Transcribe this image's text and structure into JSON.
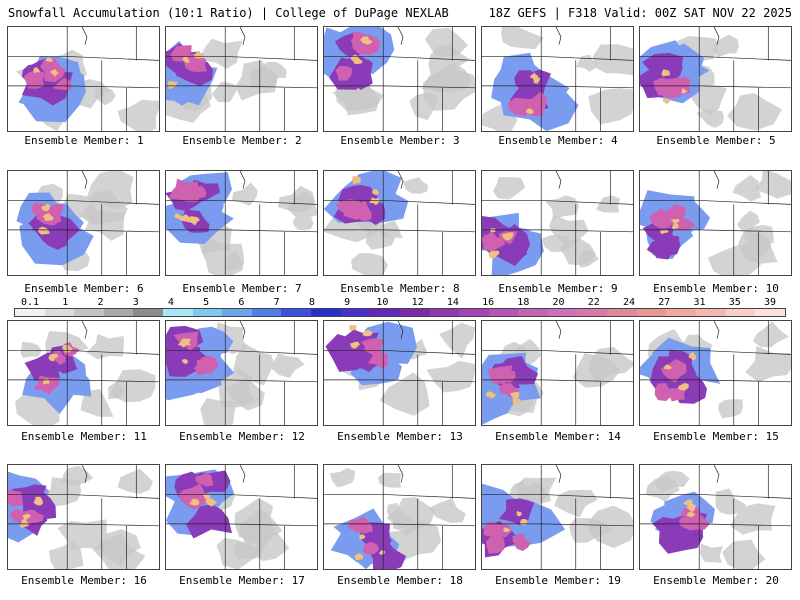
{
  "header": {
    "left": "Snowfall Accumulation (10:1 Ratio) | College of DuPage NEXLAB",
    "right": "18Z GEFS | F318 Valid: 00Z SAT NOV 22 2025"
  },
  "members": [
    {
      "label": "Ensemble Member: 1"
    },
    {
      "label": "Ensemble Member: 2"
    },
    {
      "label": "Ensemble Member: 3"
    },
    {
      "label": "Ensemble Member: 4"
    },
    {
      "label": "Ensemble Member: 5"
    },
    {
      "label": "Ensemble Member: 6"
    },
    {
      "label": "Ensemble Member: 7"
    },
    {
      "label": "Ensemble Member: 8"
    },
    {
      "label": "Ensemble Member: 9"
    },
    {
      "label": "Ensemble Member: 10"
    },
    {
      "label": "Ensemble Member: 11"
    },
    {
      "label": "Ensemble Member: 12"
    },
    {
      "label": "Ensemble Member: 13"
    },
    {
      "label": "Ensemble Member: 14"
    },
    {
      "label": "Ensemble Member: 15"
    },
    {
      "label": "Ensemble Member: 16"
    },
    {
      "label": "Ensemble Member: 17"
    },
    {
      "label": "Ensemble Member: 18"
    },
    {
      "label": "Ensemble Member: 19"
    },
    {
      "label": "Ensemble Member: 20"
    }
  ],
  "colorbar": {
    "ticks": [
      "0.1",
      "1",
      "2",
      "3",
      "4",
      "5",
      "6",
      "7",
      "8",
      "9",
      "10",
      "12",
      "14",
      "16",
      "18",
      "20",
      "22",
      "24",
      "27",
      "31",
      "35",
      "39"
    ],
    "colors": [
      "#f2f2f2",
      "#dcdcdc",
      "#c4c4c4",
      "#a9a9a9",
      "#8c8c8c",
      "#a6e6f5",
      "#7fc9f0",
      "#6aa8ee",
      "#4f7fe8",
      "#3a50e0",
      "#2830cc",
      "#4a2fc8",
      "#6428b8",
      "#7a2ca8",
      "#8e3ab0",
      "#a244b6",
      "#b454b4",
      "#c464b0",
      "#d070b8",
      "#d878a8",
      "#e0889c",
      "#e89890",
      "#f0a8a0",
      "#f4b8b0",
      "#f8d0c8",
      "#fbe2dc"
    ]
  },
  "colors": {
    "border": "#444444",
    "state_lines": "#222222",
    "light_snow": "#c8c8c8",
    "moderate_snow": "#7a9cf0",
    "heavy_snow": "#8a3cb8",
    "very_heavy_snow": "#d060b0",
    "max_snow": "#f0c080"
  }
}
